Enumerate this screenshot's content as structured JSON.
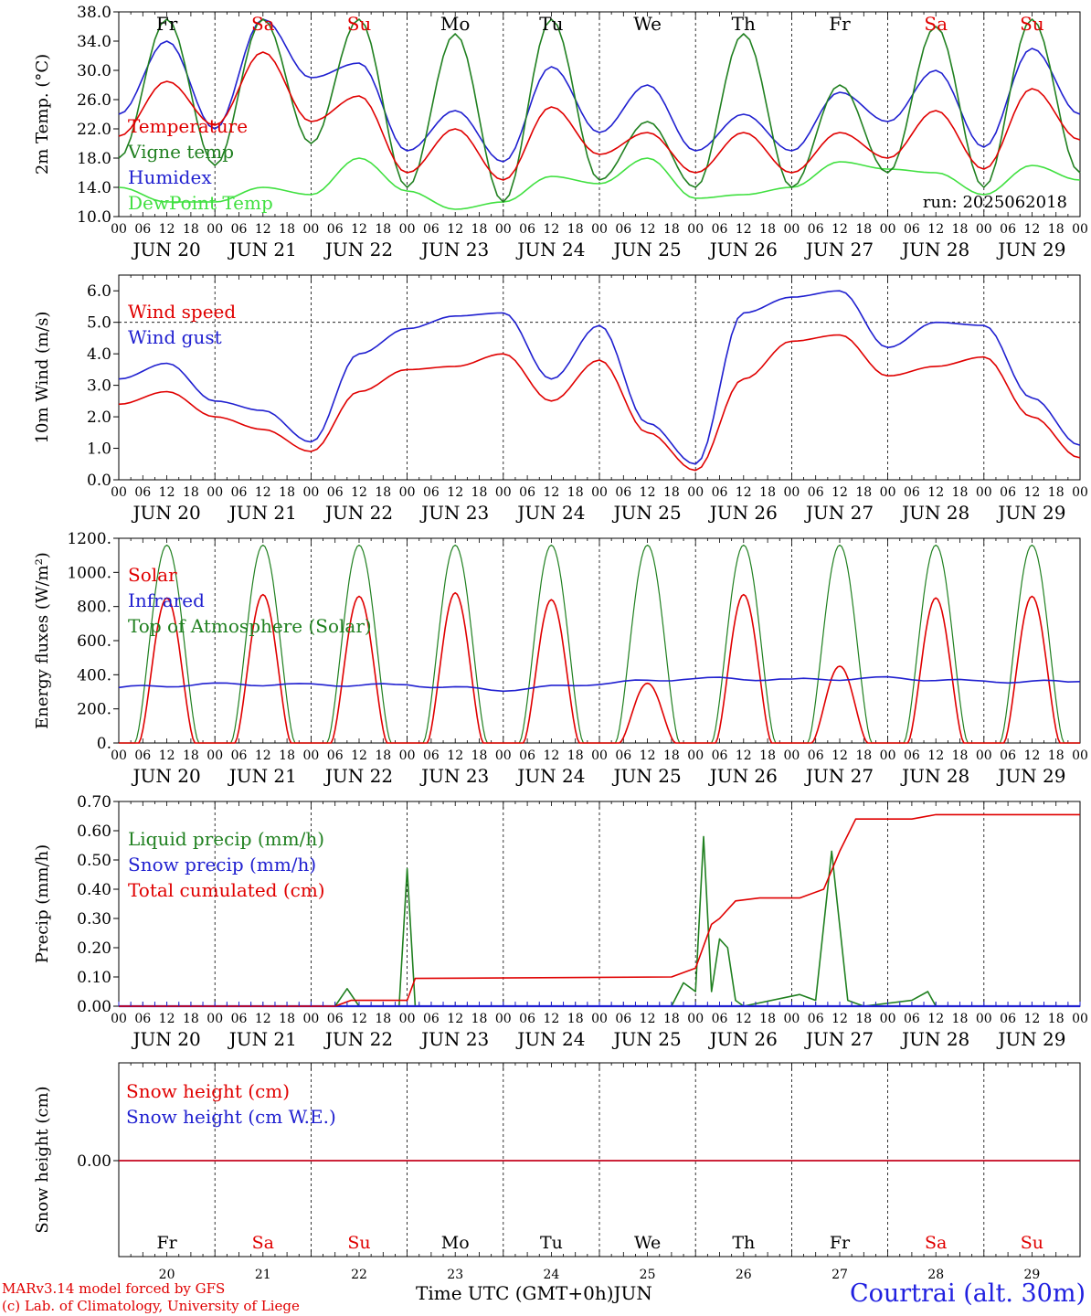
{
  "chart_data": [
    {
      "type": "line",
      "ylabel": "2m Temp. (°C)",
      "ylim": [
        10,
        38
      ],
      "yticks": [
        "10.0",
        "14.0",
        "18.0",
        "22.0",
        "26.0",
        "30.0",
        "34.0",
        "38.0"
      ],
      "x_hours": [
        0,
        12,
        24,
        36,
        48,
        60,
        72,
        84,
        96,
        108,
        120,
        132,
        144,
        156,
        168,
        180,
        192,
        204,
        216,
        228,
        240
      ],
      "annotation": "run: 2025062018",
      "series": [
        {
          "name": "Temperature",
          "color": "#e00000",
          "values": [
            21,
            28.5,
            22.5,
            32.5,
            23,
            26.5,
            16,
            22,
            15,
            25,
            18.5,
            21.5,
            16,
            21.5,
            16,
            21.5,
            18,
            24.5,
            16.5,
            27.5,
            20.5
          ]
        },
        {
          "name": "Vigne temp",
          "color": "#208020",
          "values": [
            18,
            37,
            17,
            37,
            20,
            37,
            14,
            35,
            12,
            37,
            15,
            23,
            14,
            35,
            14,
            28,
            16,
            36,
            14,
            37,
            16
          ]
        },
        {
          "name": "Humidex",
          "color": "#2020d0",
          "values": [
            24,
            34,
            22,
            37,
            29,
            31,
            19,
            24.5,
            17.5,
            30.5,
            21.5,
            28,
            19,
            24,
            19,
            27,
            23,
            30,
            19.5,
            33,
            24
          ]
        },
        {
          "name": "DewPoint Temp",
          "color": "#40e040",
          "values": [
            14,
            12,
            12,
            14,
            13,
            18,
            13.5,
            11,
            12,
            15.5,
            14.5,
            18,
            12.5,
            13,
            14,
            17.5,
            16.5,
            16,
            13,
            17,
            15
          ]
        }
      ]
    },
    {
      "type": "line",
      "ylabel": "10m Wind (m/s)",
      "ylim": [
        0,
        6.5
      ],
      "yticks": [
        "0.0",
        "1.0",
        "2.0",
        "3.0",
        "4.0",
        "5.0",
        "6.0"
      ],
      "x_hours": [
        0,
        12,
        24,
        36,
        48,
        60,
        72,
        84,
        96,
        108,
        120,
        132,
        144,
        156,
        168,
        180,
        192,
        204,
        216,
        228,
        240
      ],
      "series": [
        {
          "name": "Wind speed",
          "color": "#e00000",
          "values": [
            2.4,
            2.8,
            2.0,
            1.6,
            0.9,
            2.8,
            3.5,
            3.6,
            4.0,
            2.5,
            3.8,
            1.5,
            0.3,
            3.2,
            4.4,
            4.6,
            3.3,
            3.6,
            3.9,
            2.0,
            0.7
          ]
        },
        {
          "name": "Wind gust",
          "color": "#2020d0",
          "values": [
            3.2,
            3.7,
            2.5,
            2.2,
            1.2,
            4.0,
            4.8,
            5.2,
            5.3,
            3.2,
            4.9,
            1.8,
            0.5,
            5.3,
            5.8,
            6.0,
            4.2,
            5.0,
            4.9,
            2.6,
            1.1
          ]
        }
      ]
    },
    {
      "type": "line",
      "ylabel": "Energy fluxes (W/m²)",
      "ylim": [
        0,
        1200
      ],
      "yticks": [
        "0.",
        "200.",
        "400.",
        "600.",
        "800.",
        "1000.",
        "1200."
      ],
      "series": [
        {
          "name": "Solar",
          "color": "#e00000",
          "daily_peaks": [
            850,
            870,
            860,
            880,
            840,
            350,
            870,
            450,
            850,
            860
          ]
        },
        {
          "name": "Infrared",
          "color": "#2020d0",
          "values_daily": [
            325,
            345,
            340,
            340,
            310,
            350,
            380,
            370,
            380,
            360
          ]
        },
        {
          "name": "Top of Atmosphere (Solar)",
          "color": "#208020",
          "daily_peak": 1160
        }
      ]
    },
    {
      "type": "line",
      "ylabel": "Precip (mm/h)",
      "ylim": [
        0,
        0.7
      ],
      "yticks": [
        "0.00",
        "0.10",
        "0.20",
        "0.30",
        "0.40",
        "0.50",
        "0.60",
        "0.70"
      ],
      "series": [
        {
          "name": "Liquid precip (mm/h)",
          "color": "#208020",
          "points": [
            [
              0,
              0
            ],
            [
              54,
              0
            ],
            [
              57,
              0.06
            ],
            [
              60,
              0
            ],
            [
              70,
              0
            ],
            [
              72,
              0.47
            ],
            [
              74,
              0
            ],
            [
              138,
              0
            ],
            [
              141,
              0.08
            ],
            [
              144,
              0.05
            ],
            [
              146,
              0.58
            ],
            [
              148,
              0.05
            ],
            [
              150,
              0.23
            ],
            [
              152,
              0.2
            ],
            [
              154,
              0.02
            ],
            [
              156,
              0
            ],
            [
              170,
              0.04
            ],
            [
              174,
              0.02
            ],
            [
              178,
              0.53
            ],
            [
              182,
              0.02
            ],
            [
              186,
              0
            ],
            [
              198,
              0.02
            ],
            [
              202,
              0.05
            ],
            [
              204,
              0
            ],
            [
              240,
              0
            ]
          ]
        },
        {
          "name": "Snow precip (mm/h)",
          "color": "#2020d0",
          "points": [
            [
              0,
              0
            ],
            [
              240,
              0
            ]
          ]
        },
        {
          "name": "Total cumulated (cm)",
          "color": "#e00000",
          "points": [
            [
              0,
              0
            ],
            [
              54,
              0
            ],
            [
              58,
              0.02
            ],
            [
              72,
              0.02
            ],
            [
              74,
              0.095
            ],
            [
              138,
              0.1
            ],
            [
              144,
              0.13
            ],
            [
              148,
              0.28
            ],
            [
              150,
              0.3
            ],
            [
              154,
              0.36
            ],
            [
              160,
              0.37
            ],
            [
              170,
              0.37
            ],
            [
              176,
              0.4
            ],
            [
              180,
              0.53
            ],
            [
              184,
              0.64
            ],
            [
              198,
              0.64
            ],
            [
              204,
              0.655
            ],
            [
              240,
              0.655
            ]
          ]
        }
      ]
    },
    {
      "type": "line",
      "ylabel": "Snow height (cm)",
      "ytick": "0.00",
      "series": [
        {
          "name": "Snow height (cm)",
          "color": "#e00000",
          "values": [
            0,
            0
          ]
        },
        {
          "name": "Snow height (cm W.E.)",
          "color": "#2020d0",
          "values": [
            0,
            0
          ]
        }
      ]
    }
  ],
  "x_axis": {
    "hour_labels": [
      "00",
      "06",
      "12",
      "18"
    ],
    "end_label": "00",
    "dates": [
      "JUN 20",
      "JUN 21",
      "JUN 22",
      "JUN 23",
      "JUN 24",
      "JUN 25",
      "JUN 26",
      "JUN 27",
      "JUN 28",
      "JUN 29"
    ],
    "weekdays": [
      {
        "label": "Fr",
        "color": "#000000"
      },
      {
        "label": "Sa",
        "color": "#e00000"
      },
      {
        "label": "Su",
        "color": "#e00000"
      },
      {
        "label": "Mo",
        "color": "#000000"
      },
      {
        "label": "Tu",
        "color": "#000000"
      },
      {
        "label": "We",
        "color": "#000000"
      },
      {
        "label": "Th",
        "color": "#000000"
      },
      {
        "label": "Fr",
        "color": "#000000"
      },
      {
        "label": "Sa",
        "color": "#e00000"
      },
      {
        "label": "Su",
        "color": "#e00000"
      }
    ],
    "day_numbers": [
      "20",
      "21",
      "22",
      "23",
      "24",
      "25",
      "26",
      "27",
      "28",
      "29"
    ],
    "title": "Time UTC (GMT+0h)",
    "month": "JUN"
  },
  "footer": {
    "model_line": "MARv3.14 model forced by GFS",
    "credit_line": "(c) Lab. of Climatology, University of Liege",
    "location": "Courtrai (alt. 30m)"
  }
}
